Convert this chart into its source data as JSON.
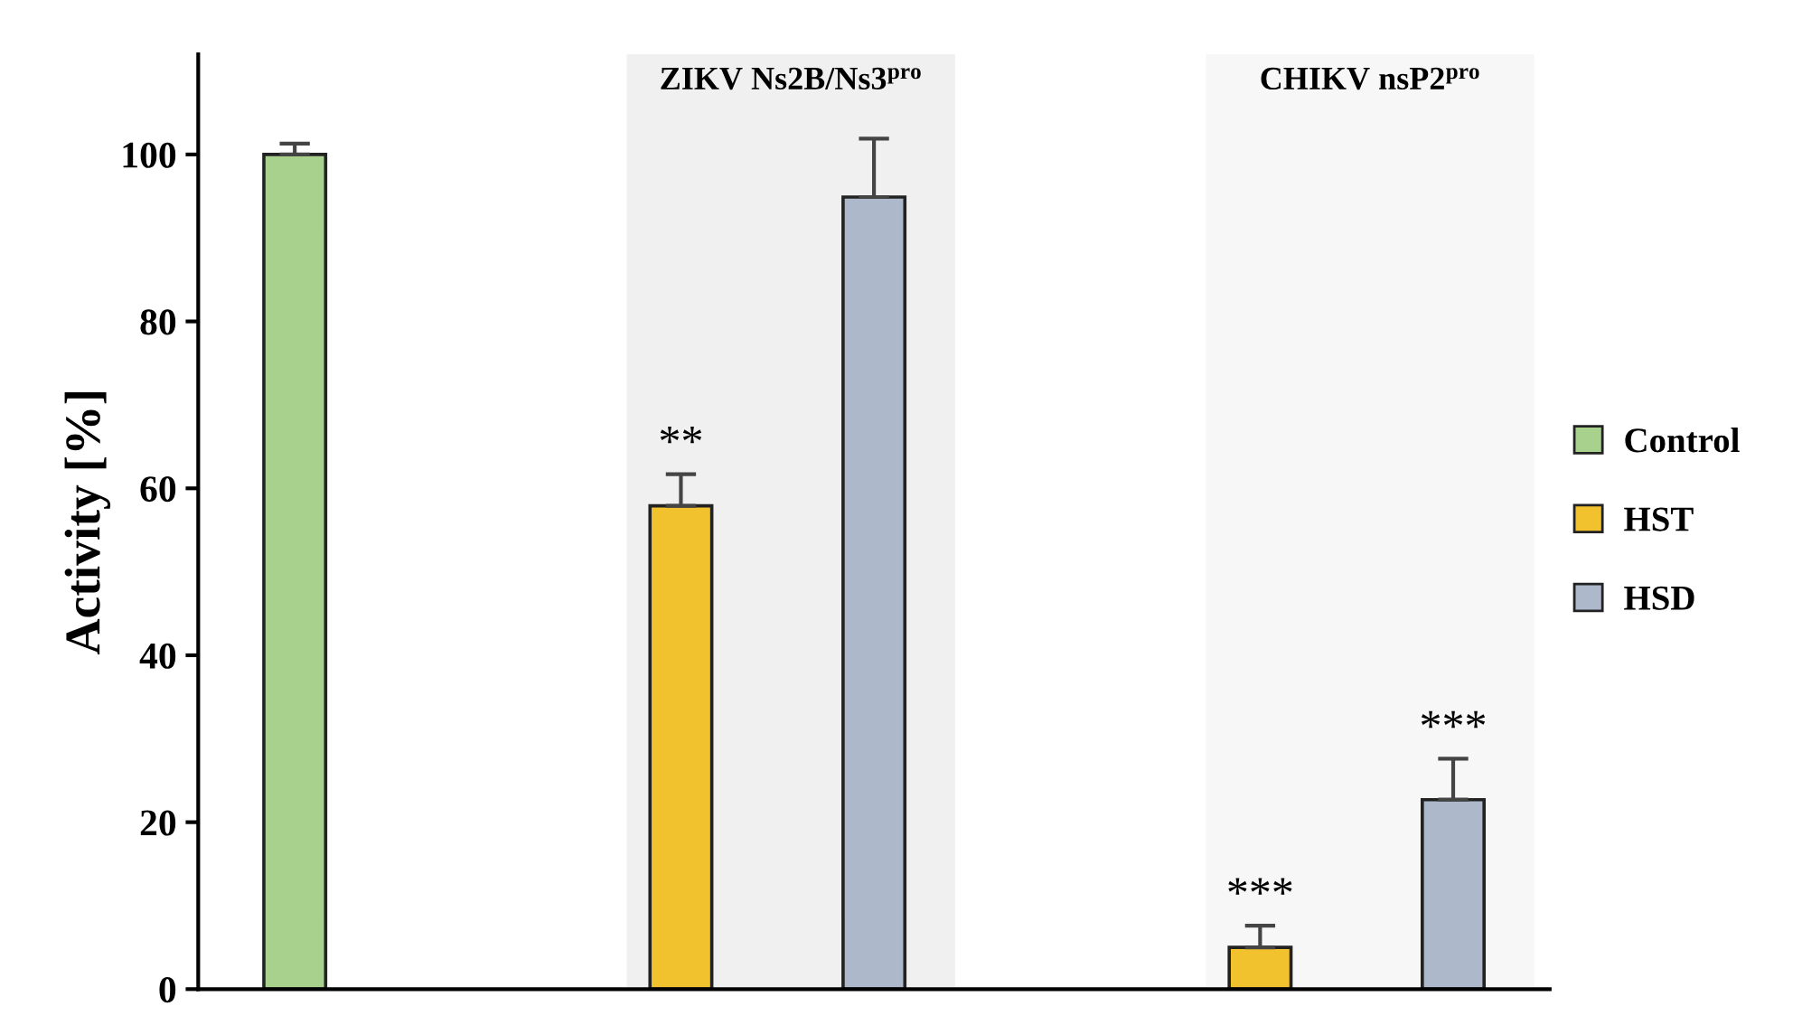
{
  "chart_data": {
    "type": "bar",
    "ylabel": "Activity [%]",
    "categories": [
      null,
      null,
      null,
      null,
      null,
      null,
      null
    ],
    "series": [
      {
        "name": "Control",
        "color": "#a8d18d",
        "values": [
          100,
          null,
          null,
          null,
          null,
          null,
          null
        ],
        "errors": [
          1.3,
          null,
          null,
          null,
          null,
          null,
          null
        ]
      },
      {
        "name": "HST",
        "color": "#f2c12e",
        "values": [
          null,
          null,
          57.9,
          null,
          null,
          5.0,
          null
        ],
        "errors": [
          null,
          null,
          3.8,
          null,
          null,
          2.6,
          null
        ],
        "value_labels": [
          null,
          null,
          "**",
          null,
          null,
          "***",
          null
        ]
      },
      {
        "name": "HSD",
        "color": "#adb9ca",
        "values": [
          null,
          null,
          null,
          94.9,
          null,
          null,
          22.7
        ],
        "errors": [
          null,
          null,
          null,
          7.0,
          null,
          null,
          4.9
        ],
        "value_labels": [
          null,
          null,
          null,
          null,
          null,
          null,
          "***"
        ]
      }
    ],
    "annotations": [
      "ZIKV Ns2B/Ns3$^{pro}$",
      "CHIKV nsP2$^{pro}$"
    ],
    "ylim": [
      0,
      112
    ],
    "yticks": [
      0,
      20,
      40,
      60,
      80,
      100
    ],
    "tick_labels": "y",
    "grid": false,
    "legend": "right"
  }
}
